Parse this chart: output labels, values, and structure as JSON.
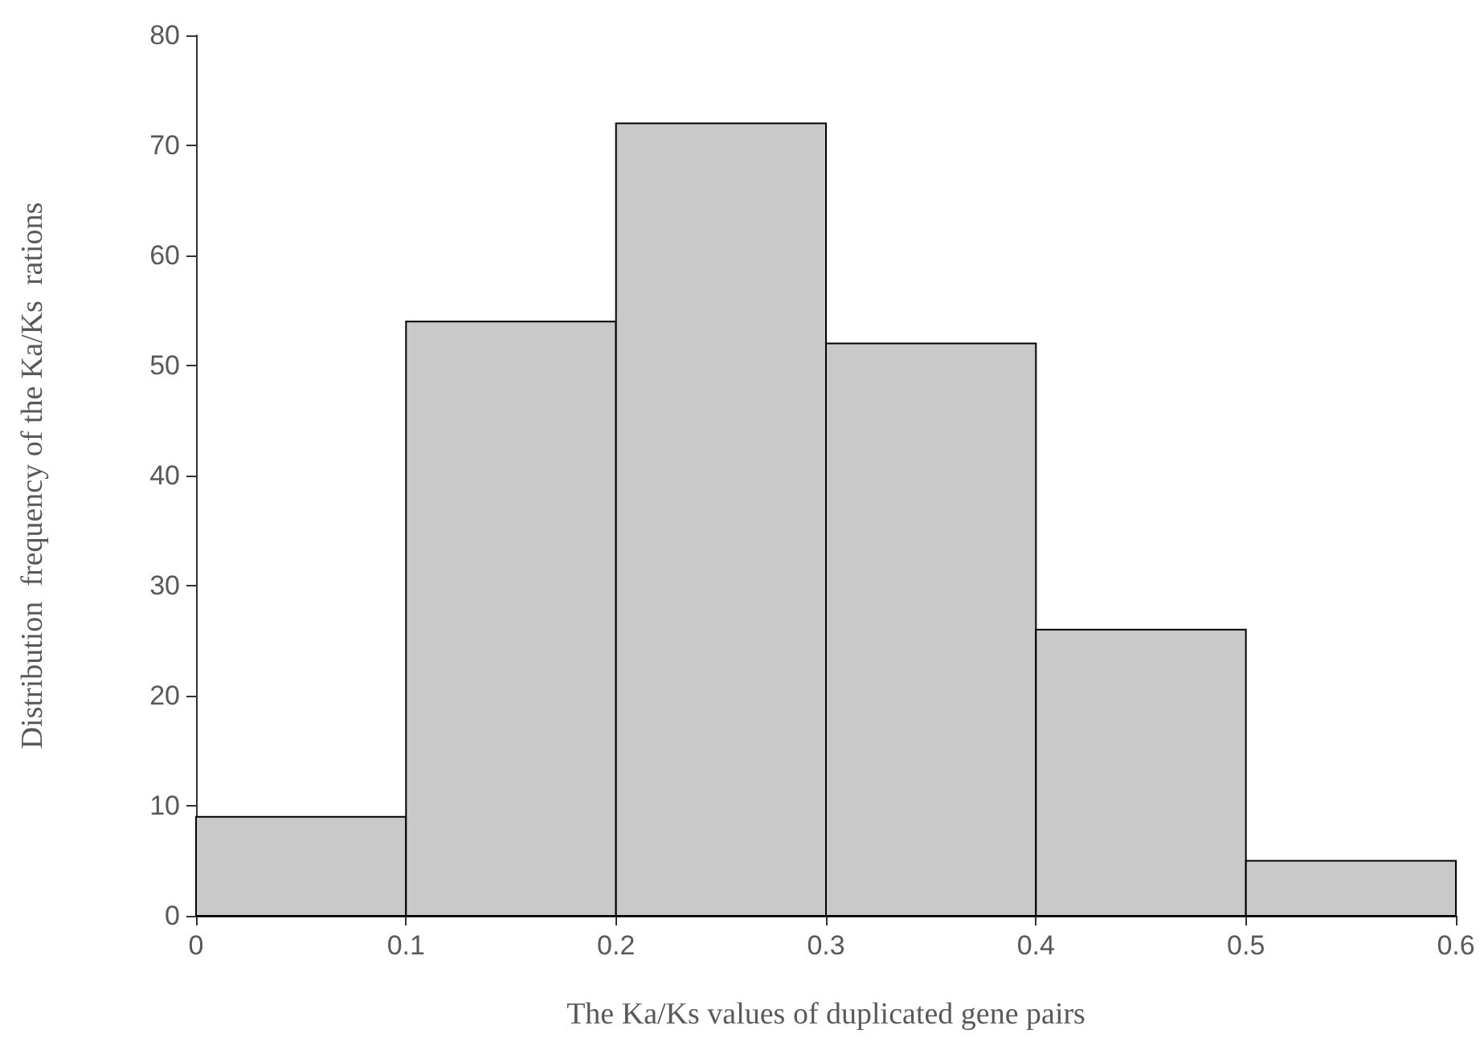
{
  "chart_data": {
    "type": "histogram",
    "xlabel": "The Ka/Ks values of duplicated gene pairs",
    "ylabel": "Distribution  frequency of the Ka/Ks  rations",
    "bins": [
      0,
      0.1,
      0.2,
      0.3,
      0.4,
      0.5,
      0.6
    ],
    "values": [
      9,
      54,
      72,
      52,
      26,
      5
    ],
    "color": "#c9c9c9",
    "xlim": [
      0,
      0.6
    ],
    "xticks": [
      0,
      0.1,
      0.2,
      0.3,
      0.4,
      0.5,
      0.6
    ],
    "ylim": [
      0,
      80
    ],
    "yticks": [
      0,
      10,
      20,
      30,
      40,
      50,
      60,
      70,
      80
    ]
  }
}
